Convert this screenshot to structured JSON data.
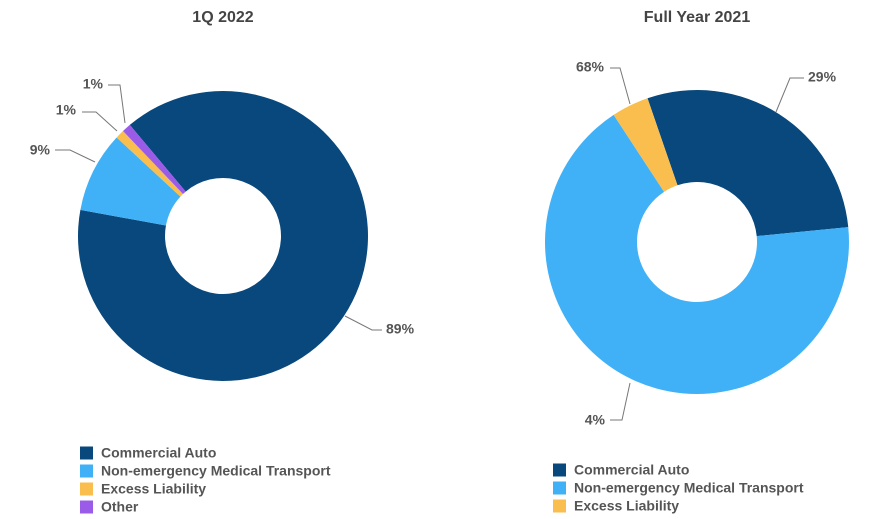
{
  "chart_data": [
    {
      "type": "donut",
      "title": "1Q 2022",
      "categories": [
        "Commercial Auto",
        "Non-emergency Medical Transport",
        "Excess Liability",
        "Other"
      ],
      "values": [
        89,
        9,
        1,
        1
      ],
      "value_labels": [
        "89%",
        "9%",
        "1%",
        "1%"
      ],
      "colors": [
        "#08487c",
        "#41b1f7",
        "#f9be4e",
        "#9a5ce8"
      ]
    },
    {
      "type": "donut",
      "title": "Full Year 2021",
      "categories": [
        "Commercial Auto",
        "Non-emergency Medical Transport",
        "Excess Liability"
      ],
      "values": [
        29,
        68,
        4
      ],
      "value_labels": [
        "29%",
        "68%",
        "4%"
      ],
      "colors": [
        "#08487c",
        "#41b1f7",
        "#f9be4e"
      ]
    }
  ]
}
